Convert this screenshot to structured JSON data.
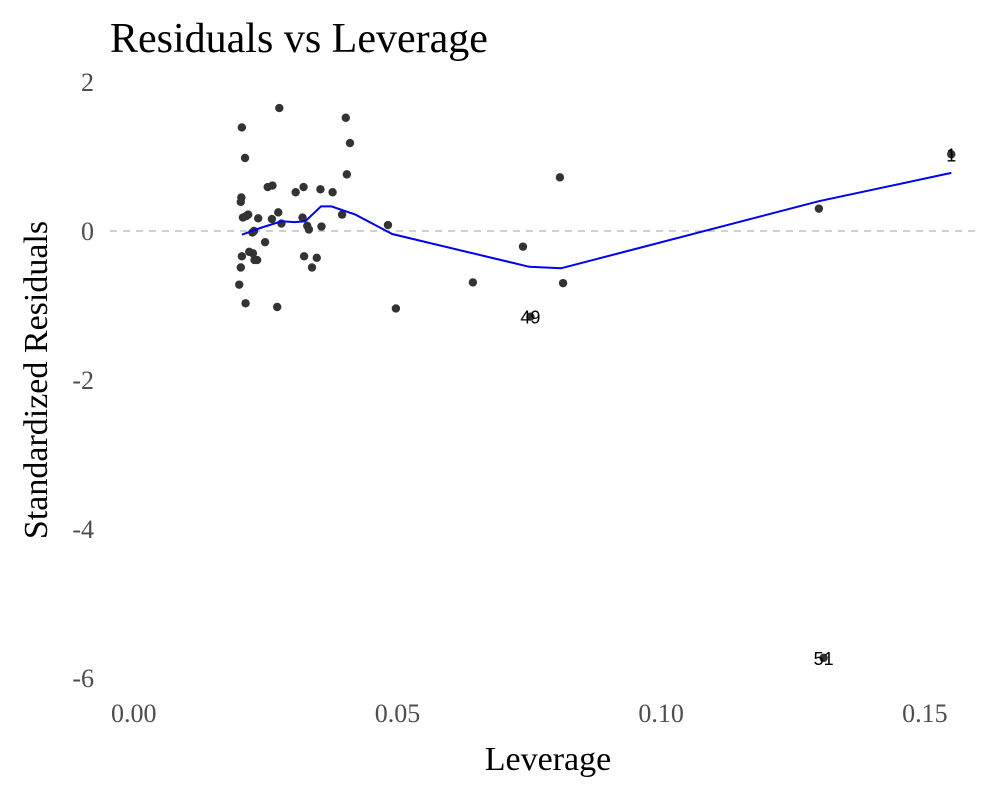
{
  "chart_data": {
    "type": "scatter",
    "title": "Residuals vs Leverage",
    "xlabel": "Leverage",
    "ylabel": "Standardized Residuals",
    "xlim": [
      -0.0045,
      0.1595
    ],
    "ylim": [
      -6.0,
      2.0
    ],
    "xticks": [
      0.0,
      0.05,
      0.1,
      0.15
    ],
    "xtick_labels": [
      "0.00",
      "0.05",
      "0.10",
      "0.15"
    ],
    "yticks": [
      2,
      0,
      -2,
      -4,
      -6
    ],
    "ytick_labels": [
      "2",
      "0",
      "-2",
      "-4",
      "-6"
    ],
    "reference_line": {
      "y": 0,
      "style": "dashed",
      "color": "#b3b3b3"
    },
    "grid": false,
    "point_color": "#333333",
    "smooth_color": "#0000ee",
    "points": [
      {
        "x": 0.0205,
        "y": 1.39
      },
      {
        "x": 0.0211,
        "y": 0.98
      },
      {
        "x": 0.0204,
        "y": 0.45
      },
      {
        "x": 0.0203,
        "y": 0.39
      },
      {
        "x": 0.0207,
        "y": 0.18
      },
      {
        "x": 0.0217,
        "y": 0.22
      },
      {
        "x": 0.0213,
        "y": 0.2
      },
      {
        "x": 0.0228,
        "y": 0.0
      },
      {
        "x": 0.0225,
        "y": -0.02
      },
      {
        "x": 0.0226,
        "y": -0.3
      },
      {
        "x": 0.0205,
        "y": -0.34
      },
      {
        "x": 0.0203,
        "y": -0.49
      },
      {
        "x": 0.02,
        "y": -0.72
      },
      {
        "x": 0.0212,
        "y": -0.97
      },
      {
        "x": 0.0219,
        "y": -0.28
      },
      {
        "x": 0.0229,
        "y": -0.39
      },
      {
        "x": 0.0234,
        "y": -0.39
      },
      {
        "x": 0.0236,
        "y": 0.17
      },
      {
        "x": 0.0249,
        "y": -0.15
      },
      {
        "x": 0.0254,
        "y": 0.59
      },
      {
        "x": 0.0263,
        "y": 0.61
      },
      {
        "x": 0.0262,
        "y": 0.16
      },
      {
        "x": 0.0274,
        "y": 0.25
      },
      {
        "x": 0.028,
        "y": 0.1
      },
      {
        "x": 0.0276,
        "y": 1.65
      },
      {
        "x": 0.0272,
        "y": -1.02
      },
      {
        "x": 0.0307,
        "y": 0.52
      },
      {
        "x": 0.0322,
        "y": 0.59
      },
      {
        "x": 0.032,
        "y": 0.18
      },
      {
        "x": 0.0323,
        "y": -0.34
      },
      {
        "x": 0.0329,
        "y": 0.07
      },
      {
        "x": 0.0332,
        "y": 0.02
      },
      {
        "x": 0.0338,
        "y": -0.49
      },
      {
        "x": 0.0347,
        "y": -0.36
      },
      {
        "x": 0.0354,
        "y": 0.56
      },
      {
        "x": 0.0356,
        "y": 0.06
      },
      {
        "x": 0.0377,
        "y": 0.52
      },
      {
        "x": 0.0395,
        "y": 0.22
      },
      {
        "x": 0.0402,
        "y": 1.52
      },
      {
        "x": 0.0404,
        "y": 0.76
      },
      {
        "x": 0.041,
        "y": 1.18
      },
      {
        "x": 0.0482,
        "y": 0.08
      },
      {
        "x": 0.0497,
        "y": -1.04
      },
      {
        "x": 0.0643,
        "y": -0.69
      },
      {
        "x": 0.0738,
        "y": -0.21
      },
      {
        "x": 0.0752,
        "y": -1.15
      },
      {
        "x": 0.0808,
        "y": 0.72
      },
      {
        "x": 0.0814,
        "y": -0.7
      },
      {
        "x": 0.1299,
        "y": 0.3
      },
      {
        "x": 0.1308,
        "y": -5.73
      },
      {
        "x": 0.155,
        "y": 1.03
      }
    ],
    "smooth_line": [
      {
        "x": 0.0205,
        "y": -0.05
      },
      {
        "x": 0.024,
        "y": 0.04
      },
      {
        "x": 0.028,
        "y": 0.13
      },
      {
        "x": 0.0305,
        "y": 0.12
      },
      {
        "x": 0.0325,
        "y": 0.13
      },
      {
        "x": 0.0355,
        "y": 0.33
      },
      {
        "x": 0.0375,
        "y": 0.33
      },
      {
        "x": 0.042,
        "y": 0.22
      },
      {
        "x": 0.049,
        "y": -0.04
      },
      {
        "x": 0.075,
        "y": -0.48
      },
      {
        "x": 0.081,
        "y": -0.5
      },
      {
        "x": 0.1299,
        "y": 0.4
      },
      {
        "x": 0.155,
        "y": 0.78
      }
    ],
    "point_labels": [
      {
        "x": 0.0752,
        "y": -1.15,
        "text": "49"
      },
      {
        "x": 0.1308,
        "y": -5.73,
        "text": "51"
      },
      {
        "x": 0.155,
        "y": 1.03,
        "text": "1"
      }
    ]
  }
}
